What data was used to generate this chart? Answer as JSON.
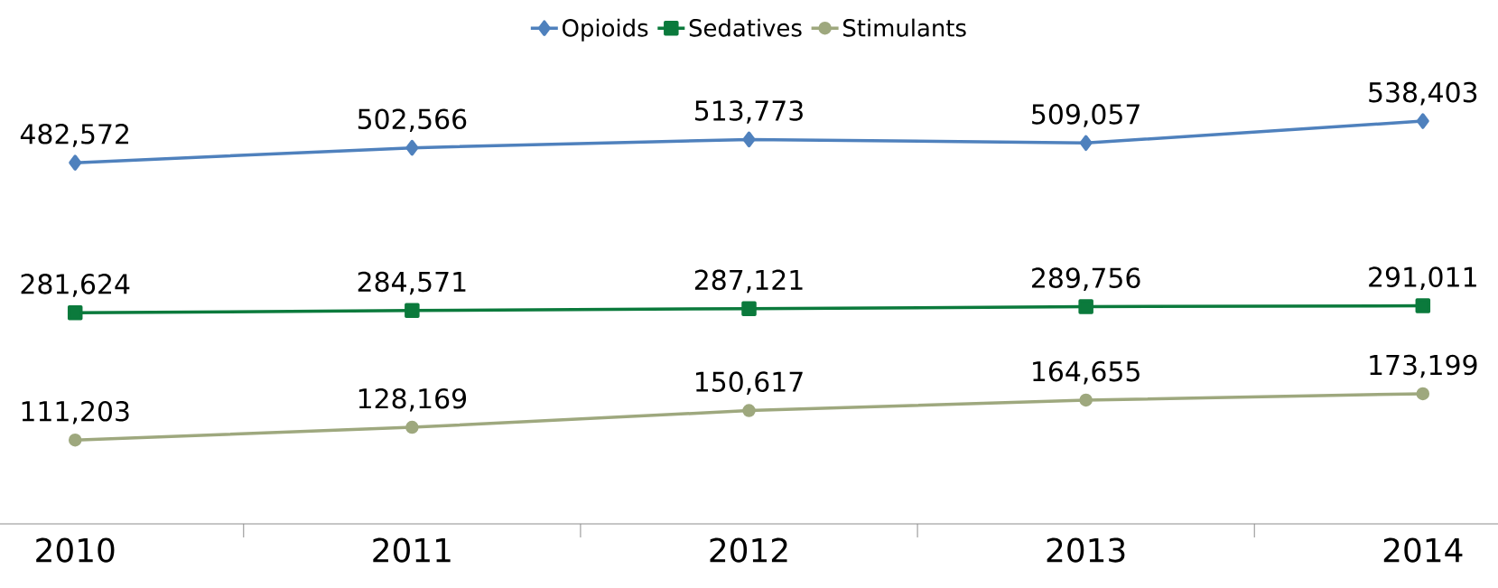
{
  "chart_data": {
    "type": "line",
    "categories": [
      "2010",
      "2011",
      "2012",
      "2013",
      "2014"
    ],
    "tick_labels": "x",
    "legend": "top",
    "series": [
      {
        "name": "Opioids",
        "color": "#4f81bd",
        "marker": "diamond",
        "values": [
          482572,
          502566,
          513773,
          509057,
          538403
        ],
        "value_labels": [
          "482,572",
          "502,566",
          "513,773",
          "509,057",
          "538,403"
        ]
      },
      {
        "name": "Sedatives",
        "color": "#0b7a3c",
        "marker": "square",
        "values": [
          281624,
          284571,
          287121,
          289756,
          291011
        ],
        "value_labels": [
          "281,624",
          "284,571",
          "287,121",
          "289,756",
          "291,011"
        ]
      },
      {
        "name": "Stimulants",
        "color": "#9ea87e",
        "marker": "circle",
        "values": [
          111203,
          128169,
          150617,
          164655,
          173199
        ],
        "value_labels": [
          "111,203",
          "128,169",
          "150,617",
          "164,655",
          "173,199"
        ]
      }
    ]
  }
}
